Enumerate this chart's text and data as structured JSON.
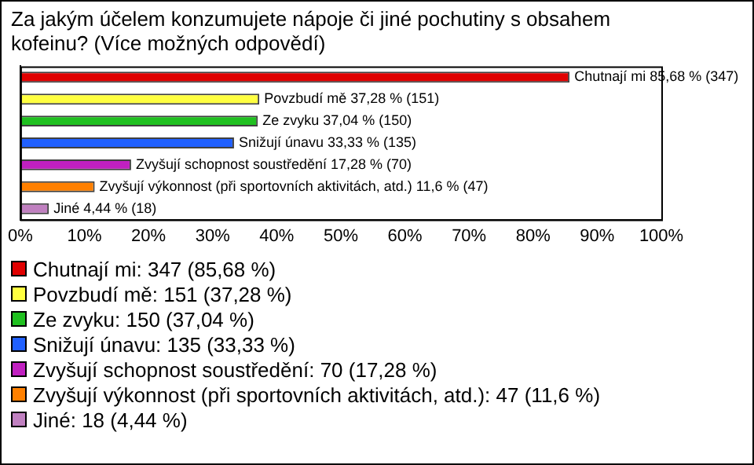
{
  "chart_data": {
    "type": "bar",
    "orientation": "horizontal",
    "title": "Za jakým účelem konzumujete nápoje či jiné pochutiny s obsahem kofeinu? (Více možných odpovědí)",
    "categories": [
      "Chutnají mi",
      "Povzbudí mě",
      "Ze zvyku",
      "Snižují únavu",
      "Zvyšují schopnost soustředění",
      "Zvyšují výkonnost (při sportovních aktivitách, atd.)",
      "Jiné"
    ],
    "values": [
      85.68,
      37.28,
      37.04,
      33.33,
      17.28,
      11.6,
      4.44
    ],
    "value_labels": [
      "85,68 % (347)",
      "37,28 % (151)",
      "37,04 % (150)",
      "33,33 % (135)",
      "17,28 % (70)",
      "11,6 % (47)",
      "4,44 % (18)"
    ],
    "colors": [
      "#e00000",
      "#ffff40",
      "#20c020",
      "#2060ff",
      "#c020c0",
      "#ff8000",
      "#c080c0"
    ],
    "xlim": [
      0,
      100
    ],
    "xticks": [
      {
        "value": 0,
        "label": "0%"
      },
      {
        "value": 10,
        "label": "10%"
      },
      {
        "value": 20,
        "label": "20%"
      },
      {
        "value": 30,
        "label": "30%"
      },
      {
        "value": 40,
        "label": "40%"
      },
      {
        "value": 50,
        "label": "50%"
      },
      {
        "value": 60,
        "label": "60%"
      },
      {
        "value": 70,
        "label": "70%"
      },
      {
        "value": 80,
        "label": "80%"
      },
      {
        "value": 90,
        "label": "90%"
      },
      {
        "value": 100,
        "label": "100%"
      }
    ],
    "tick_labels": "x",
    "grid": false,
    "annotations": [
      "Chutnají mi: 347 (85,68 %)",
      "Povzbudí mě: 151 (37,28 %)",
      "Ze zvyku: 150 (37,04 %)",
      "Snižují únavu: 135 (33,33 %)",
      "Zvyšují schopnost soustředění: 70 (17,28 %)",
      "Zvyšují výkonnost (při sportovních aktivitách, atd.): 47 (11,6 %)",
      "Jiné: 18 (4,44 %)"
    ]
  }
}
